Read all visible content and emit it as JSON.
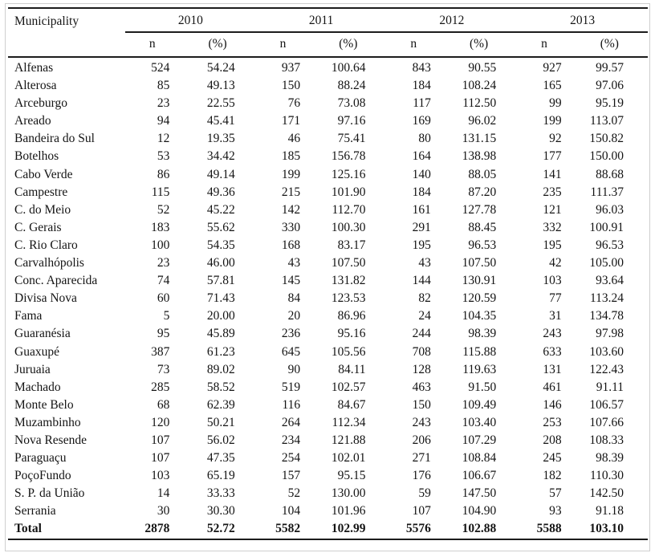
{
  "table": {
    "municipality_header": "Municipality",
    "years": [
      "2010",
      "2011",
      "2012",
      "2013"
    ],
    "sub_headers": [
      "n",
      "(%)"
    ],
    "rows": [
      {
        "name": "Alfenas",
        "values": [
          "524",
          "54.24",
          "937",
          "100.64",
          "843",
          "90.55",
          "927",
          "99.57"
        ]
      },
      {
        "name": "Alterosa",
        "values": [
          "85",
          "49.13",
          "150",
          "88.24",
          "184",
          "108.24",
          "165",
          "97.06"
        ]
      },
      {
        "name": "Arceburgo",
        "values": [
          "23",
          "22.55",
          "76",
          "73.08",
          "117",
          "112.50",
          "99",
          "95.19"
        ]
      },
      {
        "name": "Areado",
        "values": [
          "94",
          "45.41",
          "171",
          "97.16",
          "169",
          "96.02",
          "199",
          "113.07"
        ]
      },
      {
        "name": "Bandeira do Sul",
        "values": [
          "12",
          "19.35",
          "46",
          "75.41",
          "80",
          "131.15",
          "92",
          "150.82"
        ]
      },
      {
        "name": "Botelhos",
        "values": [
          "53",
          "34.42",
          "185",
          "156.78",
          "164",
          "138.98",
          "177",
          "150.00"
        ]
      },
      {
        "name": "Cabo Verde",
        "values": [
          "86",
          "49.14",
          "199",
          "125.16",
          "140",
          "88.05",
          "141",
          "88.68"
        ]
      },
      {
        "name": "Campestre",
        "values": [
          "115",
          "49.36",
          "215",
          "101.90",
          "184",
          "87.20",
          "235",
          "111.37"
        ]
      },
      {
        "name": "C. do Meio",
        "values": [
          "52",
          "45.22",
          "142",
          "112.70",
          "161",
          "127.78",
          "121",
          "96.03"
        ]
      },
      {
        "name": "C. Gerais",
        "values": [
          "183",
          "55.62",
          "330",
          "100.30",
          "291",
          "88.45",
          "332",
          "100.91"
        ]
      },
      {
        "name": "C. Rio Claro",
        "values": [
          "100",
          "54.35",
          "168",
          "83.17",
          "195",
          "96.53",
          "195",
          "96.53"
        ]
      },
      {
        "name": "Carvalhópolis",
        "values": [
          "23",
          "46.00",
          "43",
          "107.50",
          "43",
          "107.50",
          "42",
          "105.00"
        ]
      },
      {
        "name": "Conc. Aparecida",
        "values": [
          "74",
          "57.81",
          "145",
          "131.82",
          "144",
          "130.91",
          "103",
          "93.64"
        ]
      },
      {
        "name": "Divisa Nova",
        "values": [
          "60",
          "71.43",
          "84",
          "123.53",
          "82",
          "120.59",
          "77",
          "113.24"
        ]
      },
      {
        "name": "Fama",
        "values": [
          "5",
          "20.00",
          "20",
          "86.96",
          "24",
          "104.35",
          "31",
          "134.78"
        ]
      },
      {
        "name": "Guaranésia",
        "values": [
          "95",
          "45.89",
          "236",
          "95.16",
          "244",
          "98.39",
          "243",
          "97.98"
        ]
      },
      {
        "name": "Guaxupé",
        "values": [
          "387",
          "61.23",
          "645",
          "105.56",
          "708",
          "115.88",
          "633",
          "103.60"
        ]
      },
      {
        "name": "Juruaia",
        "values": [
          "73",
          "89.02",
          "90",
          "84.11",
          "128",
          "119.63",
          "131",
          "122.43"
        ]
      },
      {
        "name": "Machado",
        "values": [
          "285",
          "58.52",
          "519",
          "102.57",
          "463",
          "91.50",
          "461",
          "91.11"
        ]
      },
      {
        "name": "Monte Belo",
        "values": [
          "68",
          "62.39",
          "116",
          "84.67",
          "150",
          "109.49",
          "146",
          "106.57"
        ]
      },
      {
        "name": "Muzambinho",
        "values": [
          "120",
          "50.21",
          "264",
          "112.34",
          "243",
          "103.40",
          "253",
          "107.66"
        ]
      },
      {
        "name": "Nova Resende",
        "values": [
          "107",
          "56.02",
          "234",
          "121.88",
          "206",
          "107.29",
          "208",
          "108.33"
        ]
      },
      {
        "name": "Paraguaçu",
        "values": [
          "107",
          "47.35",
          "254",
          "102.01",
          "271",
          "108.84",
          "245",
          "98.39"
        ]
      },
      {
        "name": "PoçoFundo",
        "values": [
          "103",
          "65.19",
          "157",
          "95.15",
          "176",
          "106.67",
          "182",
          "110.30"
        ]
      },
      {
        "name": "S. P. da União",
        "values": [
          "14",
          "33.33",
          "52",
          "130.00",
          "59",
          "147.50",
          "57",
          "142.50"
        ]
      },
      {
        "name": "Serrania",
        "values": [
          "30",
          "30.30",
          "104",
          "101.96",
          "107",
          "104.90",
          "93",
          "91.18"
        ]
      }
    ],
    "total_row": {
      "name": "Total",
      "values": [
        "2878",
        "52.72",
        "5582",
        "102.99",
        "5576",
        "102.88",
        "5588",
        "103.10"
      ]
    }
  }
}
